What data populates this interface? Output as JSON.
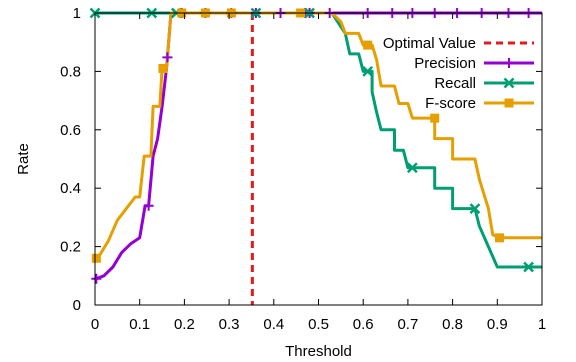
{
  "chart_data": {
    "type": "line",
    "title": "",
    "xlabel": "Threshold",
    "ylabel": "Rate",
    "xlim": [
      0,
      1
    ],
    "ylim": [
      0,
      1
    ],
    "x_ticks": [
      "0",
      "0.1",
      "0.2",
      "0.3",
      "0.4",
      "0.5",
      "0.6",
      "0.7",
      "0.8",
      "0.9",
      "1"
    ],
    "y_ticks": [
      "0",
      "0.2",
      "0.4",
      "0.6",
      "0.8",
      "1"
    ],
    "grid": false,
    "legend_position": "top-right",
    "optimal_value": {
      "name": "Optimal Value",
      "x": 0.352,
      "color": "#e41a1c"
    },
    "series": [
      {
        "name": "Precision",
        "color": "#9400d3",
        "marker": "plus",
        "points": [
          [
            0.003,
            0.09
          ],
          [
            0.02,
            0.1
          ],
          [
            0.04,
            0.13
          ],
          [
            0.06,
            0.18
          ],
          [
            0.08,
            0.21
          ],
          [
            0.1,
            0.23
          ],
          [
            0.112,
            0.34
          ],
          [
            0.12,
            0.34
          ],
          [
            0.13,
            0.51
          ],
          [
            0.14,
            0.57
          ],
          [
            0.15,
            0.68
          ],
          [
            0.16,
            0.81
          ],
          [
            0.17,
            1.0
          ],
          [
            0.2,
            1.0
          ],
          [
            0.3,
            1.0
          ],
          [
            0.4,
            1.0
          ],
          [
            0.5,
            1.0
          ],
          [
            0.55,
            1.0
          ],
          [
            0.6,
            1.0
          ],
          [
            0.7,
            1.0
          ],
          [
            0.8,
            1.0
          ],
          [
            0.9,
            1.0
          ],
          [
            1.0,
            1.0
          ]
        ],
        "markers_x": [
          0.003,
          0.12,
          0.162,
          0.194,
          0.247,
          0.305,
          0.36,
          0.415,
          0.47,
          0.48,
          0.525,
          0.61,
          0.665,
          0.71,
          0.76,
          0.81,
          0.865,
          0.925,
          0.97
        ]
      },
      {
        "name": "Recall",
        "color": "#009e73",
        "marker": "cross",
        "points": [
          [
            0.0,
            1.0
          ],
          [
            0.53,
            1.0
          ],
          [
            0.56,
            0.93
          ],
          [
            0.57,
            0.86
          ],
          [
            0.59,
            0.86
          ],
          [
            0.6,
            0.8
          ],
          [
            0.62,
            0.8
          ],
          [
            0.62,
            0.73
          ],
          [
            0.63,
            0.66
          ],
          [
            0.64,
            0.6
          ],
          [
            0.67,
            0.6
          ],
          [
            0.67,
            0.53
          ],
          [
            0.69,
            0.53
          ],
          [
            0.7,
            0.47
          ],
          [
            0.72,
            0.47
          ],
          [
            0.73,
            0.47
          ],
          [
            0.76,
            0.47
          ],
          [
            0.76,
            0.4
          ],
          [
            0.8,
            0.4
          ],
          [
            0.8,
            0.33
          ],
          [
            0.84,
            0.33
          ],
          [
            0.85,
            0.33
          ],
          [
            0.86,
            0.27
          ],
          [
            0.88,
            0.2
          ],
          [
            0.9,
            0.13
          ],
          [
            1.0,
            0.13
          ]
        ],
        "markers": [
          [
            0.0,
            1.0
          ],
          [
            0.127,
            1.0
          ],
          [
            0.182,
            1.0
          ],
          [
            0.36,
            1.0
          ],
          [
            0.48,
            1.0
          ],
          [
            0.61,
            0.8
          ],
          [
            0.71,
            0.47
          ],
          [
            0.85,
            0.33
          ],
          [
            0.97,
            0.13
          ]
        ]
      },
      {
        "name": "F-score",
        "color": "#e69f00",
        "marker": "square",
        "points": [
          [
            0.003,
            0.16
          ],
          [
            0.01,
            0.17
          ],
          [
            0.03,
            0.22
          ],
          [
            0.05,
            0.29
          ],
          [
            0.07,
            0.33
          ],
          [
            0.09,
            0.37
          ],
          [
            0.1,
            0.37
          ],
          [
            0.11,
            0.51
          ],
          [
            0.125,
            0.51
          ],
          [
            0.13,
            0.68
          ],
          [
            0.145,
            0.68
          ],
          [
            0.15,
            0.81
          ],
          [
            0.16,
            0.81
          ],
          [
            0.17,
            1.0
          ],
          [
            0.2,
            1.0
          ],
          [
            0.3,
            1.0
          ],
          [
            0.4,
            1.0
          ],
          [
            0.53,
            1.0
          ],
          [
            0.55,
            0.97
          ],
          [
            0.56,
            0.93
          ],
          [
            0.59,
            0.93
          ],
          [
            0.6,
            0.89
          ],
          [
            0.62,
            0.89
          ],
          [
            0.63,
            0.84
          ],
          [
            0.64,
            0.75
          ],
          [
            0.67,
            0.75
          ],
          [
            0.68,
            0.69
          ],
          [
            0.7,
            0.69
          ],
          [
            0.71,
            0.64
          ],
          [
            0.76,
            0.64
          ],
          [
            0.76,
            0.57
          ],
          [
            0.8,
            0.57
          ],
          [
            0.8,
            0.5
          ],
          [
            0.85,
            0.5
          ],
          [
            0.86,
            0.43
          ],
          [
            0.88,
            0.33
          ],
          [
            0.89,
            0.24
          ],
          [
            0.91,
            0.23
          ],
          [
            1.0,
            0.23
          ]
        ],
        "markers": [
          [
            0.003,
            0.16
          ],
          [
            0.152,
            0.81
          ],
          [
            0.194,
            1.0
          ],
          [
            0.247,
            1.0
          ],
          [
            0.305,
            1.0
          ],
          [
            0.46,
            1.0
          ],
          [
            0.61,
            0.89
          ],
          [
            0.76,
            0.64
          ],
          [
            0.905,
            0.23
          ]
        ]
      }
    ]
  }
}
